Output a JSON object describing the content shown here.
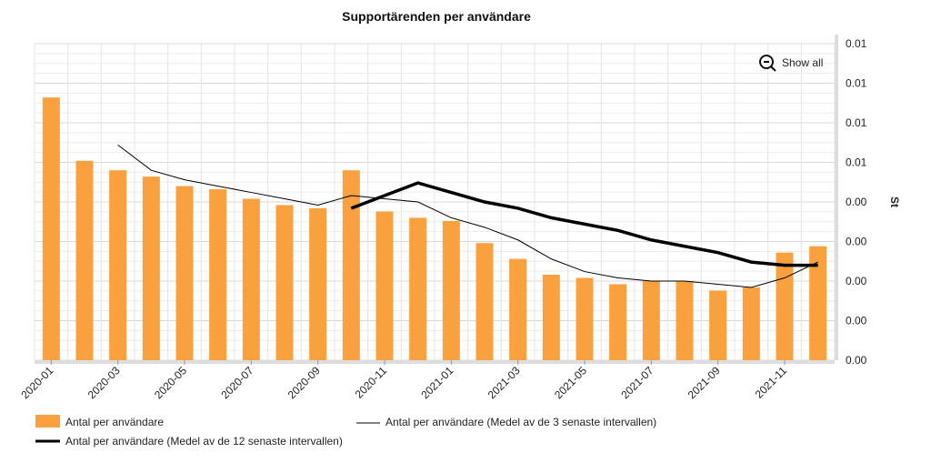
{
  "chart_data": {
    "type": "bar",
    "title": "Supportärenden per användare",
    "ylabel": "St",
    "xlabel": "",
    "ylim": [
      0,
      0.01
    ],
    "y_tick_labels": [
      "0.00",
      "0.00",
      "0.00",
      "0.00",
      "0.00",
      "0.01",
      "0.01",
      "0.01",
      "0.01"
    ],
    "grid": true,
    "legend_placement": "bottom",
    "categories": [
      "2020-01",
      "2020-02",
      "2020-03",
      "2020-04",
      "2020-05",
      "2020-06",
      "2020-07",
      "2020-08",
      "2020-09",
      "2020-10",
      "2020-11",
      "2020-12",
      "2021-01",
      "2021-02",
      "2021-03",
      "2021-04",
      "2021-05",
      "2021-06",
      "2021-07",
      "2021-08",
      "2021-09",
      "2021-10",
      "2021-11",
      "2021-12"
    ],
    "x_tick_labels": [
      "2020-01",
      "2020-03",
      "2020-05",
      "2020-07",
      "2020-09",
      "2020-11",
      "2021-01",
      "2021-03",
      "2021-05",
      "2021-07",
      "2021-09",
      "2021-11"
    ],
    "series": [
      {
        "name": "Antal per användare",
        "type": "bar",
        "color": "#f9a03f",
        "values": [
          0.0083,
          0.0063,
          0.006,
          0.0058,
          0.0055,
          0.0054,
          0.0051,
          0.0049,
          0.0048,
          0.006,
          0.0047,
          0.0045,
          0.0044,
          0.0037,
          0.0032,
          0.0027,
          0.0026,
          0.0024,
          0.0025,
          0.0025,
          0.0022,
          0.0023,
          0.0034,
          0.0036
        ]
      },
      {
        "name": "Antal per användare (Medel av de 3 senaste intervallen)",
        "type": "line",
        "color": "#000000",
        "values": [
          null,
          null,
          0.0068,
          0.006,
          0.0057,
          0.0055,
          0.0053,
          0.0051,
          0.0049,
          0.0052,
          0.0051,
          0.005,
          0.0045,
          0.0042,
          0.0038,
          0.0032,
          0.0028,
          0.0026,
          0.0025,
          0.0025,
          0.0024,
          0.0023,
          0.0026,
          0.0031
        ]
      },
      {
        "name": "Antal per användare (Medel av de 12 senaste intervallen)",
        "type": "line",
        "color": "#000000",
        "values": [
          null,
          null,
          null,
          null,
          null,
          null,
          null,
          null,
          null,
          0.0048,
          0.0052,
          0.0056,
          0.0053,
          0.005,
          0.0048,
          0.0045,
          0.0043,
          0.0041,
          0.0038,
          0.0036,
          0.0034,
          0.0031,
          0.003,
          0.003
        ]
      }
    ]
  },
  "controls": {
    "show_all_label": "Show all",
    "show_all_icon": "zoom-out-icon"
  }
}
